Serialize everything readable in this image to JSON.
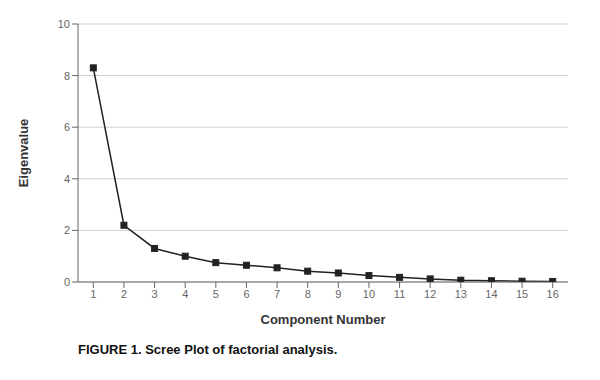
{
  "chart_data": {
    "type": "line",
    "title": "FIGURE 1. Scree Plot of factorial analysis.",
    "xlabel": "Component Number",
    "ylabel": "Eigenvalue",
    "x": [
      1,
      2,
      3,
      4,
      5,
      6,
      7,
      8,
      9,
      10,
      11,
      12,
      13,
      14,
      15,
      16
    ],
    "values": [
      8.3,
      2.2,
      1.3,
      1.0,
      0.75,
      0.65,
      0.55,
      0.42,
      0.35,
      0.25,
      0.18,
      0.12,
      0.07,
      0.05,
      0.03,
      0.02
    ],
    "color": "#222222",
    "marker": "square",
    "xlim": [
      0.5,
      16.5
    ],
    "xticks": [
      1,
      2,
      3,
      4,
      5,
      6,
      7,
      8,
      9,
      10,
      11,
      12,
      13,
      14,
      15,
      16
    ],
    "ylim": [
      0,
      10
    ],
    "yticks": [
      0,
      2,
      4,
      6,
      8,
      10
    ],
    "grid": true
  }
}
